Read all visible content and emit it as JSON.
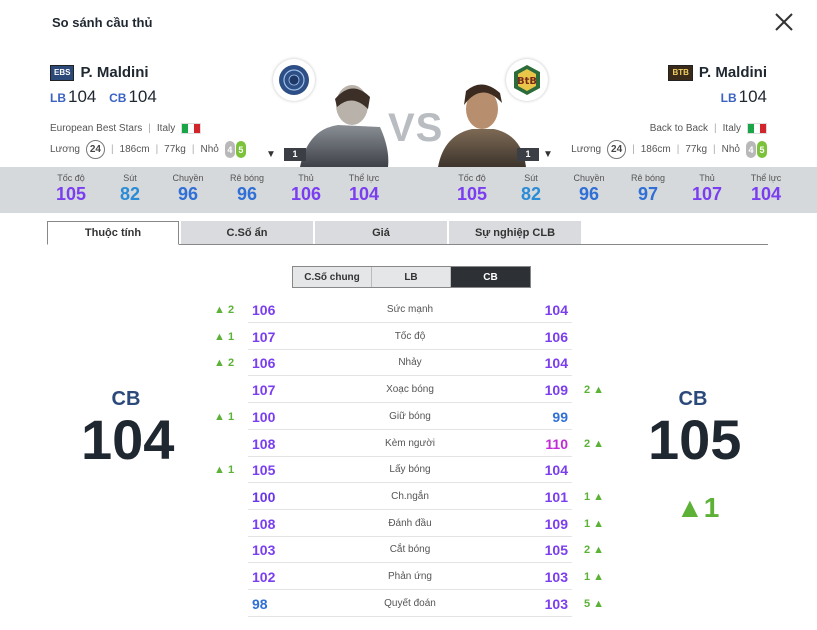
{
  "window": {
    "title": "So sánh cầu thủ"
  },
  "left_player": {
    "team_badge": "EBS",
    "name": "P. Maldini",
    "positions": [
      {
        "pos": "LB",
        "value": "104"
      },
      {
        "pos": "CB",
        "value": "104"
      }
    ],
    "team": "European Best Stars",
    "nation": "Italy",
    "wage_label": "Lương",
    "wage": "24",
    "height": "186cm",
    "weight": "77kg",
    "body": "Nhỏ",
    "weak_foot": "4",
    "strong_foot": "5",
    "card_number": "1"
  },
  "right_player": {
    "team_badge": "BTB",
    "name": "P. Maldini",
    "positions": [
      {
        "pos": "LB",
        "value": "104"
      }
    ],
    "team": "Back to Back",
    "nation": "Italy",
    "wage_label": "Lương",
    "wage": "24",
    "height": "186cm",
    "weight": "77kg",
    "body": "Nhỏ",
    "weak_foot": "4",
    "strong_foot": "5",
    "card_number": "1"
  },
  "vs_label": "VS",
  "left_stats": [
    {
      "label": "Tốc độ",
      "value": "105"
    },
    {
      "label": "Sút",
      "value": "82"
    },
    {
      "label": "Chuyền",
      "value": "96"
    },
    {
      "label": "Rê bóng",
      "value": "96"
    },
    {
      "label": "Thủ",
      "value": "106"
    },
    {
      "label": "Thể lực",
      "value": "104"
    }
  ],
  "right_stats": [
    {
      "label": "Tốc độ",
      "value": "105"
    },
    {
      "label": "Sút",
      "value": "82"
    },
    {
      "label": "Chuyền",
      "value": "96"
    },
    {
      "label": "Rê bóng",
      "value": "97"
    },
    {
      "label": "Thủ",
      "value": "107"
    },
    {
      "label": "Thể lực",
      "value": "104"
    }
  ],
  "tabs": [
    "Thuộc tính",
    "C.Số ẩn",
    "Giá",
    "Sự nghiệp CLB"
  ],
  "active_tab": 0,
  "subtabs": [
    "C.Số chung",
    "LB",
    "CB"
  ],
  "active_subtab": 2,
  "left_overall": {
    "pos": "CB",
    "value": "104"
  },
  "right_overall": {
    "pos": "CB",
    "value": "105",
    "diff": "▲1"
  },
  "rows": [
    {
      "name": "Sức mạnh",
      "left": "106",
      "right": "104",
      "left_diff": "▲ 2",
      "right_diff": ""
    },
    {
      "name": "Tốc độ",
      "left": "107",
      "right": "106",
      "left_diff": "▲ 1",
      "right_diff": ""
    },
    {
      "name": "Nhảy",
      "left": "106",
      "right": "104",
      "left_diff": "▲ 2",
      "right_diff": ""
    },
    {
      "name": "Xoạc bóng",
      "left": "107",
      "right": "109",
      "left_diff": "",
      "right_diff": "2 ▲"
    },
    {
      "name": "Giữ bóng",
      "left": "100",
      "right": "99",
      "left_diff": "▲ 1",
      "right_diff": ""
    },
    {
      "name": "Kèm người",
      "left": "108",
      "right": "110",
      "left_diff": "",
      "right_diff": "2 ▲"
    },
    {
      "name": "Lấy bóng",
      "left": "105",
      "right": "104",
      "left_diff": "▲ 1",
      "right_diff": ""
    },
    {
      "name": "Ch.ngắn",
      "left": "100",
      "right": "101",
      "left_diff": "",
      "right_diff": "1 ▲"
    },
    {
      "name": "Đánh đầu",
      "left": "108",
      "right": "109",
      "left_diff": "",
      "right_diff": "1 ▲"
    },
    {
      "name": "Cắt bóng",
      "left": "103",
      "right": "105",
      "left_diff": "",
      "right_diff": "2 ▲"
    },
    {
      "name": "Phản ứng",
      "left": "102",
      "right": "103",
      "left_diff": "",
      "right_diff": "1 ▲"
    },
    {
      "name": "Quyết đoán",
      "left": "98",
      "right": "103",
      "left_diff": "",
      "right_diff": "5 ▲"
    }
  ],
  "colors": {
    "positive": "#5db137",
    "accent_blue": "#2b4a7a",
    "stat_band": "#d6d9dc"
  }
}
